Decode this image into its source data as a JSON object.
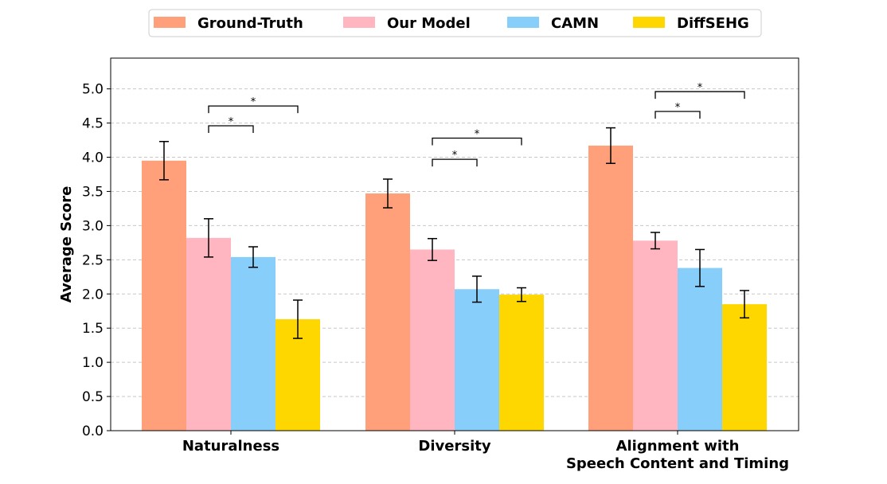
{
  "chart_data": {
    "type": "bar",
    "title": "",
    "xlabel": "",
    "ylabel": "Average Score",
    "ylim": [
      0,
      5.45
    ],
    "yticks": [
      "0.0",
      "0.5",
      "1.0",
      "1.5",
      "2.0",
      "2.5",
      "3.0",
      "3.5",
      "4.0",
      "4.5",
      "5.0"
    ],
    "grid": "horizontal dashed",
    "legend_position": "top-center",
    "categories": [
      [
        "Naturalness"
      ],
      [
        "Diversity"
      ],
      [
        "Alignment with",
        "Speech Content and Timing"
      ]
    ],
    "series": [
      {
        "name": "Ground-Truth",
        "color": "#FFA07A",
        "values": [
          3.95,
          3.47,
          4.17
        ],
        "errors": [
          0.28,
          0.21,
          0.26
        ]
      },
      {
        "name": "Our Model",
        "color": "#FFB6C1",
        "values": [
          2.82,
          2.65,
          2.78
        ],
        "errors": [
          0.28,
          0.16,
          0.12
        ]
      },
      {
        "name": "CAMN",
        "color": "#87CEFA",
        "values": [
          2.54,
          2.07,
          2.38
        ],
        "errors": [
          0.15,
          0.19,
          0.27
        ]
      },
      {
        "name": "DiffSEHG",
        "color": "#FFD700",
        "values": [
          1.63,
          1.99,
          1.85
        ],
        "errors": [
          0.28,
          0.1,
          0.2
        ]
      }
    ],
    "significance": [
      {
        "category": 0,
        "from": 1,
        "to": 2,
        "level": 4.46,
        "label": "*"
      },
      {
        "category": 0,
        "from": 1,
        "to": 3,
        "level": 4.75,
        "label": "*"
      },
      {
        "category": 1,
        "from": 1,
        "to": 2,
        "level": 3.97,
        "label": "*"
      },
      {
        "category": 1,
        "from": 1,
        "to": 3,
        "level": 4.28,
        "label": "*"
      },
      {
        "category": 2,
        "from": 1,
        "to": 2,
        "level": 4.67,
        "label": "*"
      },
      {
        "category": 2,
        "from": 1,
        "to": 3,
        "level": 4.96,
        "label": "*"
      }
    ]
  }
}
